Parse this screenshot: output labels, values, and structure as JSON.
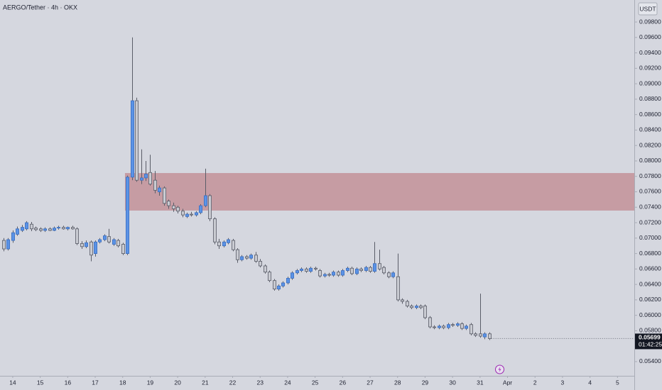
{
  "chart_data": {
    "type": "candlestick",
    "title": "AERGO/Tether · 4h · OKX",
    "currency": "USDT",
    "up_color": "#5b93e6",
    "down_color": "#c9cbd2",
    "wick_color": "#5a5d68",
    "zone_color": "#b4555a",
    "zone": {
      "start": 26.5,
      "low": 0.07357,
      "high": 0.07843
    },
    "last_price": 0.05699,
    "countdown": "01:42:25",
    "ylim": [
      0.05216,
      0.10085
    ],
    "xlim": [
      -0.78,
      137.67
    ],
    "yticks": [
      {
        "value": 0.054,
        "label": "0.05400"
      },
      {
        "value": 0.056,
        "label": "0.05600"
      },
      {
        "value": 0.058,
        "label": "0.05800"
      },
      {
        "value": 0.06,
        "label": "0.06000"
      },
      {
        "value": 0.062,
        "label": "0.06200"
      },
      {
        "value": 0.064,
        "label": "0.06400"
      },
      {
        "value": 0.066,
        "label": "0.06600"
      },
      {
        "value": 0.068,
        "label": "0.06800"
      },
      {
        "value": 0.07,
        "label": "0.07000"
      },
      {
        "value": 0.072,
        "label": "0.07200"
      },
      {
        "value": 0.074,
        "label": "0.07400"
      },
      {
        "value": 0.076,
        "label": "0.07600"
      },
      {
        "value": 0.078,
        "label": "0.07800"
      },
      {
        "value": 0.08,
        "label": "0.08000"
      },
      {
        "value": 0.082,
        "label": "0.08200"
      },
      {
        "value": 0.084,
        "label": "0.08400"
      },
      {
        "value": 0.086,
        "label": "0.08600"
      },
      {
        "value": 0.088,
        "label": "0.08800"
      },
      {
        "value": 0.09,
        "label": "0.09000"
      },
      {
        "value": 0.092,
        "label": "0.09200"
      },
      {
        "value": 0.094,
        "label": "0.09400"
      },
      {
        "value": 0.096,
        "label": "0.09600"
      },
      {
        "value": 0.098,
        "label": "0.09800"
      }
    ],
    "xticks": [
      {
        "value": 2,
        "label": "14"
      },
      {
        "value": 8,
        "label": "15"
      },
      {
        "value": 14,
        "label": "16"
      },
      {
        "value": 20,
        "label": "17"
      },
      {
        "value": 26,
        "label": "18"
      },
      {
        "value": 32,
        "label": "19"
      },
      {
        "value": 38,
        "label": "20"
      },
      {
        "value": 44,
        "label": "21"
      },
      {
        "value": 50,
        "label": "22"
      },
      {
        "value": 56,
        "label": "23"
      },
      {
        "value": 62,
        "label": "24"
      },
      {
        "value": 68,
        "label": "25"
      },
      {
        "value": 74,
        "label": "26"
      },
      {
        "value": 80,
        "label": "27"
      },
      {
        "value": 86,
        "label": "28"
      },
      {
        "value": 92,
        "label": "29"
      },
      {
        "value": 98,
        "label": "30"
      },
      {
        "value": 104,
        "label": "31"
      },
      {
        "value": 110,
        "label": "Apr"
      },
      {
        "value": 116,
        "label": "2"
      },
      {
        "value": 122,
        "label": "3"
      },
      {
        "value": 128,
        "label": "4"
      },
      {
        "value": 134,
        "label": "5"
      }
    ],
    "candles": [
      [
        0.0697,
        0.07,
        0.0683,
        0.0686
      ],
      [
        0.0686,
        0.07,
        0.0684,
        0.0698
      ],
      [
        0.0697,
        0.071,
        0.0694,
        0.0707
      ],
      [
        0.0705,
        0.0715,
        0.0703,
        0.0712
      ],
      [
        0.071,
        0.0717,
        0.0708,
        0.0714
      ],
      [
        0.0712,
        0.0722,
        0.071,
        0.072
      ],
      [
        0.0718,
        0.0721,
        0.0709,
        0.0712
      ],
      [
        0.0713,
        0.0715,
        0.0709,
        0.0711
      ],
      [
        0.0712,
        0.0714,
        0.0708,
        0.071
      ],
      [
        0.071,
        0.0714,
        0.0708,
        0.0712
      ],
      [
        0.0712,
        0.0714,
        0.0709,
        0.071
      ],
      [
        0.071,
        0.0715,
        0.0709,
        0.0713
      ],
      [
        0.0713,
        0.0716,
        0.0711,
        0.0714
      ],
      [
        0.0714,
        0.0716,
        0.0711,
        0.0712
      ],
      [
        0.0712,
        0.0715,
        0.071,
        0.0714
      ],
      [
        0.0714,
        0.0716,
        0.0711,
        0.0712
      ],
      [
        0.0712,
        0.0714,
        0.0691,
        0.0693
      ],
      [
        0.0693,
        0.0696,
        0.0686,
        0.0689
      ],
      [
        0.0689,
        0.0697,
        0.0687,
        0.0694
      ],
      [
        0.0695,
        0.0697,
        0.067,
        0.0678
      ],
      [
        0.068,
        0.0697,
        0.0676,
        0.0695
      ],
      [
        0.0695,
        0.07,
        0.0693,
        0.0698
      ],
      [
        0.0698,
        0.0705,
        0.0696,
        0.0703
      ],
      [
        0.0702,
        0.0712,
        0.0693,
        0.0695
      ],
      [
        0.0692,
        0.07,
        0.069,
        0.0698
      ],
      [
        0.0697,
        0.0699,
        0.0688,
        0.069
      ],
      [
        0.0692,
        0.0694,
        0.0678,
        0.068
      ],
      [
        0.068,
        0.0781,
        0.0678,
        0.0779
      ],
      [
        0.0779,
        0.096,
        0.0775,
        0.0878
      ],
      [
        0.0878,
        0.0882,
        0.0773,
        0.0775
      ],
      [
        0.0775,
        0.0815,
        0.077,
        0.0778
      ],
      [
        0.0778,
        0.08,
        0.0774,
        0.0783
      ],
      [
        0.0785,
        0.0808,
        0.0768,
        0.077
      ],
      [
        0.0775,
        0.0787,
        0.0758,
        0.0762
      ],
      [
        0.076,
        0.0768,
        0.0755,
        0.0765
      ],
      [
        0.0765,
        0.0767,
        0.0742,
        0.0745
      ],
      [
        0.0748,
        0.075,
        0.0738,
        0.0742
      ],
      [
        0.0742,
        0.0746,
        0.0734,
        0.0738
      ],
      [
        0.074,
        0.0742,
        0.0732,
        0.0735
      ],
      [
        0.0735,
        0.0738,
        0.0727,
        0.073
      ],
      [
        0.0728,
        0.0733,
        0.0726,
        0.0731
      ],
      [
        0.0731,
        0.0734,
        0.0728,
        0.073
      ],
      [
        0.073,
        0.0735,
        0.0728,
        0.0733
      ],
      [
        0.0733,
        0.0744,
        0.0731,
        0.0742
      ],
      [
        0.0742,
        0.079,
        0.074,
        0.0755
      ],
      [
        0.0755,
        0.0757,
        0.0722,
        0.0725
      ],
      [
        0.0725,
        0.0727,
        0.0692,
        0.0695
      ],
      [
        0.0695,
        0.0699,
        0.0686,
        0.069
      ],
      [
        0.069,
        0.0697,
        0.0688,
        0.0695
      ],
      [
        0.0694,
        0.07,
        0.0692,
        0.0698
      ],
      [
        0.0697,
        0.0699,
        0.0683,
        0.0685
      ],
      [
        0.0685,
        0.0687,
        0.0668,
        0.0672
      ],
      [
        0.0672,
        0.0678,
        0.067,
        0.0676
      ],
      [
        0.0676,
        0.0678,
        0.0672,
        0.0674
      ],
      [
        0.0674,
        0.068,
        0.0672,
        0.0678
      ],
      [
        0.0678,
        0.0682,
        0.0668,
        0.067
      ],
      [
        0.067,
        0.0673,
        0.0662,
        0.0664
      ],
      [
        0.0664,
        0.0666,
        0.0654,
        0.0656
      ],
      [
        0.0656,
        0.0658,
        0.0643,
        0.0645
      ],
      [
        0.0645,
        0.0647,
        0.0632,
        0.0634
      ],
      [
        0.0634,
        0.064,
        0.0632,
        0.0638
      ],
      [
        0.0638,
        0.0644,
        0.0636,
        0.0642
      ],
      [
        0.0642,
        0.065,
        0.064,
        0.0648
      ],
      [
        0.0648,
        0.0657,
        0.0646,
        0.0655
      ],
      [
        0.0655,
        0.066,
        0.0653,
        0.0658
      ],
      [
        0.0658,
        0.0662,
        0.0656,
        0.066
      ],
      [
        0.066,
        0.0662,
        0.0655,
        0.0657
      ],
      [
        0.0657,
        0.0663,
        0.0655,
        0.0661
      ],
      [
        0.0661,
        0.0663,
        0.0658,
        0.066
      ],
      [
        0.0658,
        0.066,
        0.0649,
        0.0651
      ],
      [
        0.0651,
        0.0655,
        0.0649,
        0.0653
      ],
      [
        0.0653,
        0.0655,
        0.065,
        0.0652
      ],
      [
        0.0652,
        0.0658,
        0.065,
        0.0656
      ],
      [
        0.0656,
        0.0658,
        0.065,
        0.0652
      ],
      [
        0.0652,
        0.066,
        0.065,
        0.0658
      ],
      [
        0.0658,
        0.0663,
        0.0656,
        0.0661
      ],
      [
        0.0661,
        0.0663,
        0.0652,
        0.0654
      ],
      [
        0.0654,
        0.0662,
        0.0652,
        0.066
      ],
      [
        0.066,
        0.0662,
        0.0656,
        0.0658
      ],
      [
        0.0658,
        0.0664,
        0.0656,
        0.0662
      ],
      [
        0.0662,
        0.0664,
        0.0655,
        0.0657
      ],
      [
        0.0657,
        0.0695,
        0.0655,
        0.0667
      ],
      [
        0.0667,
        0.0685,
        0.0658,
        0.066
      ],
      [
        0.0662,
        0.0664,
        0.0653,
        0.0655
      ],
      [
        0.0655,
        0.0657,
        0.0648,
        0.065
      ],
      [
        0.065,
        0.0657,
        0.0648,
        0.0655
      ],
      [
        0.065,
        0.068,
        0.0618,
        0.062
      ],
      [
        0.062,
        0.0622,
        0.0615,
        0.0618
      ],
      [
        0.0618,
        0.062,
        0.061,
        0.0612
      ],
      [
        0.0612,
        0.0614,
        0.0608,
        0.061
      ],
      [
        0.061,
        0.0614,
        0.0608,
        0.0612
      ],
      [
        0.0612,
        0.0614,
        0.0608,
        0.061
      ],
      [
        0.0612,
        0.0614,
        0.0595,
        0.0597
      ],
      [
        0.0597,
        0.0599,
        0.0583,
        0.0585
      ],
      [
        0.0585,
        0.0587,
        0.0582,
        0.0584
      ],
      [
        0.0584,
        0.0588,
        0.0582,
        0.0586
      ],
      [
        0.0586,
        0.0588,
        0.0582,
        0.0584
      ],
      [
        0.0584,
        0.059,
        0.0582,
        0.0588
      ],
      [
        0.0588,
        0.059,
        0.0585,
        0.0587
      ],
      [
        0.0587,
        0.0591,
        0.0585,
        0.0589
      ],
      [
        0.0589,
        0.0591,
        0.0581,
        0.0583
      ],
      [
        0.0583,
        0.0588,
        0.0581,
        0.0586
      ],
      [
        0.0588,
        0.059,
        0.0574,
        0.0576
      ],
      [
        0.0576,
        0.0578,
        0.0572,
        0.0574
      ],
      [
        0.0576,
        0.0628,
        0.0571,
        0.0573
      ],
      [
        0.0572,
        0.0578,
        0.0569,
        0.0576
      ],
      [
        0.0576,
        0.0578,
        0.0568,
        0.05699
      ]
    ]
  }
}
